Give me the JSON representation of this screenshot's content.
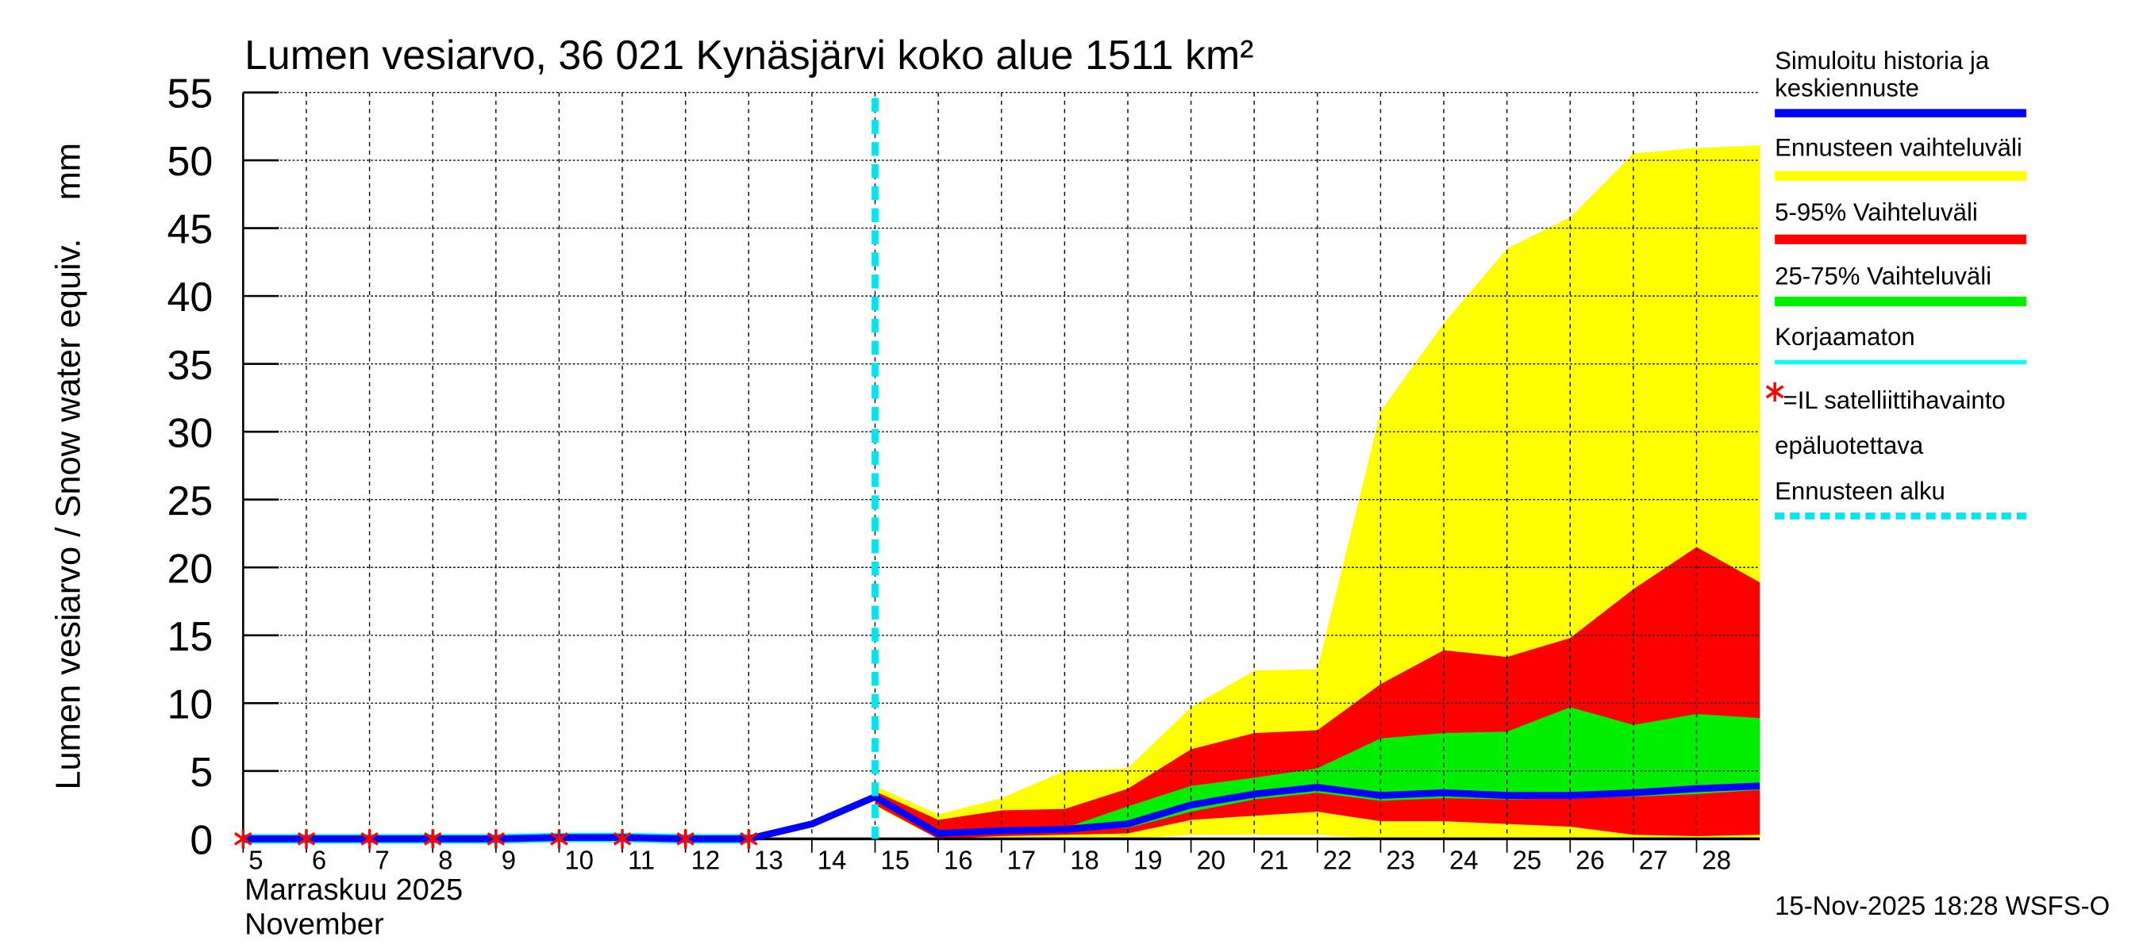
{
  "chart_data": {
    "type": "area",
    "title": "Lumen vesiarvo, 36 021 Kynäsjärvi koko alue 1511 km²",
    "ylabel": "Lumen vesiarvo / Snow water equiv.    mm",
    "xlabel_line1": "Marraskuu 2025",
    "xlabel_line2": "November",
    "ylim": [
      0,
      55
    ],
    "xlim": [
      5,
      29
    ],
    "grid": true,
    "yticks": [
      0,
      5,
      10,
      15,
      20,
      25,
      30,
      35,
      40,
      45,
      50,
      55
    ],
    "xticks": [
      5,
      6,
      7,
      8,
      9,
      10,
      11,
      12,
      13,
      14,
      15,
      16,
      17,
      18,
      19,
      20,
      21,
      22,
      23,
      24,
      25,
      26,
      27,
      28
    ],
    "forecast_start_day": 15,
    "forecast_days": [
      15,
      16,
      17,
      18,
      19,
      20,
      21,
      22,
      23,
      24,
      25,
      26,
      27,
      28,
      29
    ],
    "bands": {
      "yellow": {
        "upper": [
          3.9,
          1.8,
          3.0,
          5.0,
          5.2,
          9.7,
          12.4,
          12.5,
          31.5,
          38.0,
          43.5,
          45.8,
          50.5,
          50.9,
          51.1
        ],
        "lower": [
          2.4,
          0,
          0,
          0,
          0,
          0.3,
          0.3,
          0.3,
          0,
          0,
          0,
          0,
          0,
          0,
          0
        ]
      },
      "red": {
        "upper": [
          3.5,
          1.4,
          2.1,
          2.2,
          3.7,
          6.6,
          7.8,
          8.0,
          11.4,
          13.9,
          13.4,
          14.8,
          18.4,
          21.5,
          18.9
        ],
        "lower": [
          2.5,
          0,
          0.2,
          0.3,
          0.4,
          1.4,
          1.7,
          2.0,
          1.3,
          1.3,
          1.1,
          0.9,
          0.3,
          0.2,
          0.3
        ]
      },
      "green": {
        "upper": [
          3.0,
          0.5,
          0.7,
          0.8,
          2.4,
          3.9,
          4.5,
          5.2,
          7.4,
          7.8,
          7.9,
          9.7,
          8.4,
          9.2,
          8.9
        ],
        "lower": [
          3.0,
          0.3,
          0.5,
          0.7,
          0.8,
          2.0,
          2.9,
          3.4,
          2.8,
          3.0,
          2.9,
          3.0,
          3.1,
          3.3,
          3.6
        ]
      }
    },
    "mean": {
      "days": [
        5,
        6,
        7,
        8,
        9,
        10,
        11,
        12,
        13,
        14,
        15,
        16,
        17,
        18,
        19,
        20,
        21,
        22,
        23,
        24,
        25,
        26,
        27,
        28,
        29
      ],
      "values": [
        0,
        0,
        0,
        0,
        0,
        0.1,
        0.1,
        0,
        0,
        1.1,
        3.1,
        0.4,
        0.6,
        0.7,
        1.1,
        2.5,
        3.3,
        3.8,
        3.2,
        3.4,
        3.2,
        3.2,
        3.4,
        3.7,
        3.9
      ]
    },
    "uncorrected": {
      "days": [
        5,
        6,
        7,
        8,
        9,
        10,
        11,
        12,
        13
      ],
      "values": [
        0,
        0,
        0,
        0,
        0,
        0.1,
        0.1,
        0,
        0
      ]
    },
    "satellite_obs": {
      "days": [
        5,
        6,
        7,
        8,
        9,
        10,
        11,
        12,
        13
      ],
      "values": [
        0,
        0,
        0,
        0,
        0,
        0,
        0,
        0,
        0
      ]
    },
    "legend": {
      "placement": "right",
      "items": [
        {
          "label": "Simuloitu historia ja keskiennuste",
          "color": "#0000ff"
        },
        {
          "label": "Ennusteen vaihteluväli",
          "color": "#ffff00"
        },
        {
          "label": "5-95% Vaihteluväli",
          "color": "#ff0000"
        },
        {
          "label": "25-75% Vaihteluväli",
          "color": "#00ee00"
        },
        {
          "label": "Korjaamaton",
          "color": "#00ffff"
        },
        {
          "label": "=IL satelliittihavainto",
          "label2": "epäluotettava",
          "color": "#ff0000"
        },
        {
          "label": "Ennusteen alku",
          "color": "#00e5ee"
        }
      ]
    },
    "footer": "15-Nov-2025 18:28 WSFS-O"
  }
}
